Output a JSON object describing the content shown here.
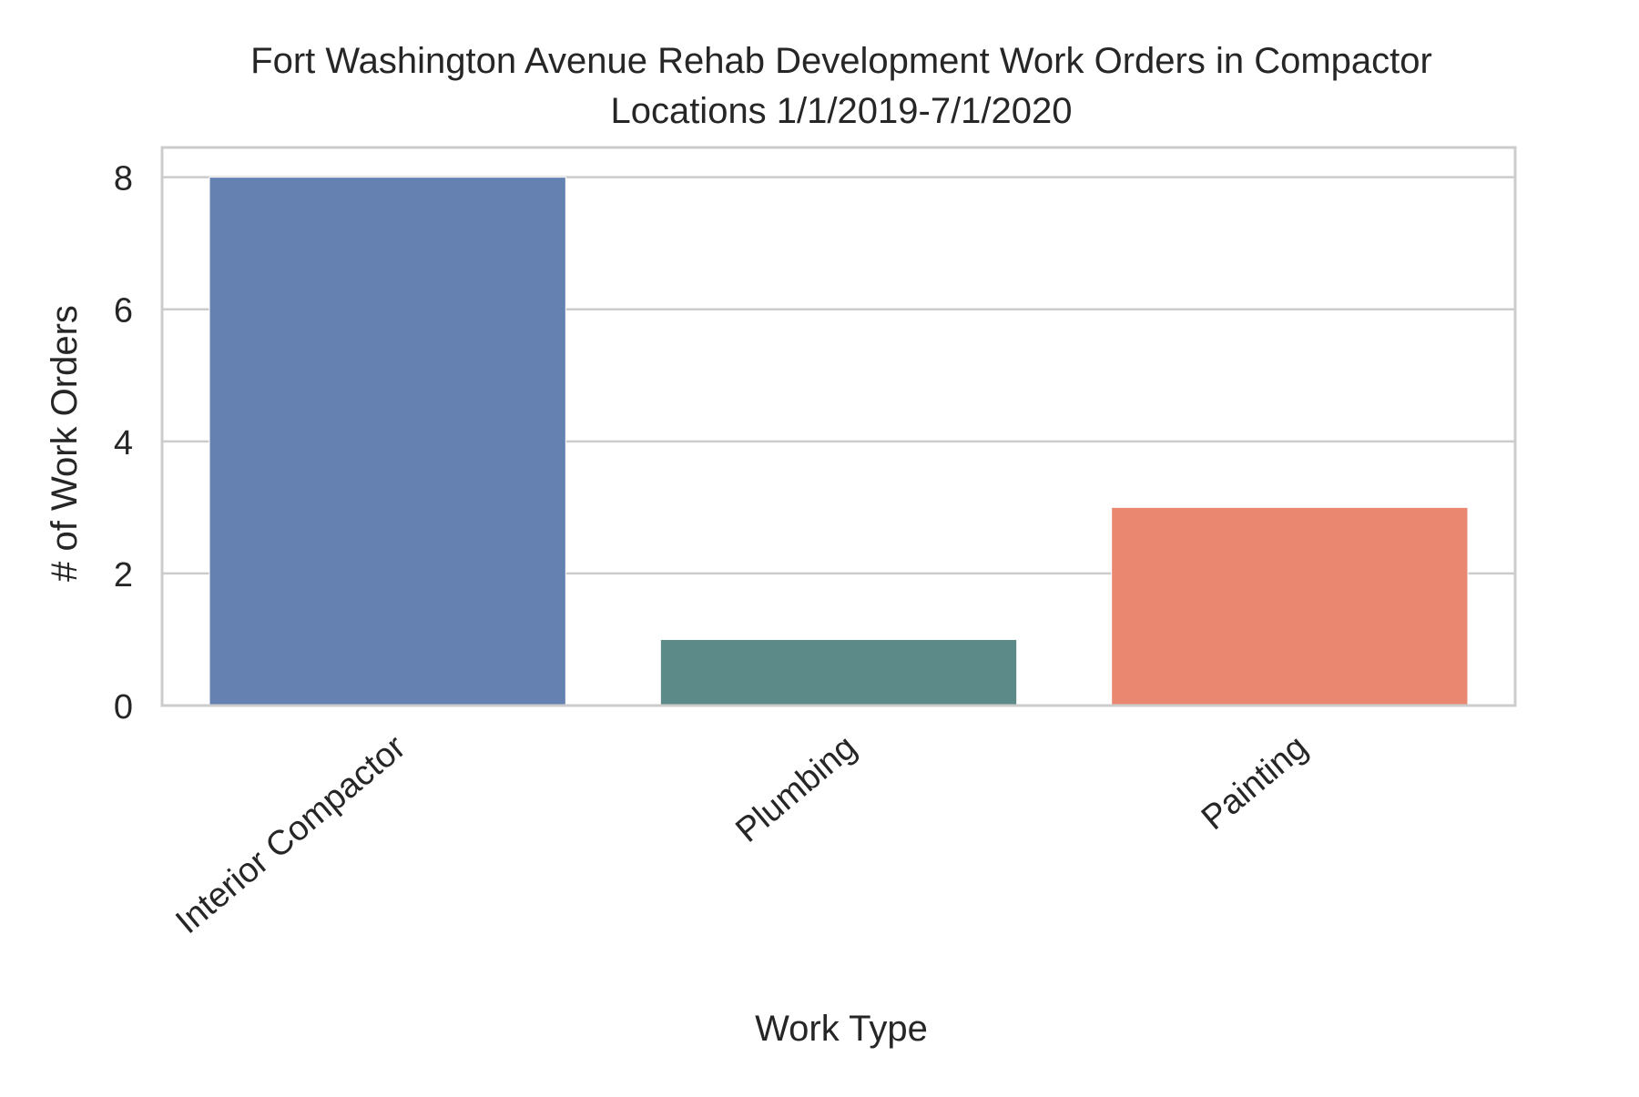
{
  "chart_data": {
    "type": "bar",
    "title_lines": [
      "Fort Washington Avenue Rehab Development Work Orders in Compactor",
      "Locations 1/1/2019-7/1/2020"
    ],
    "xlabel": "Work Type",
    "ylabel": "# of Work Orders",
    "categories": [
      "Interior Compactor",
      "Plumbing",
      "Painting"
    ],
    "values": [
      8,
      1,
      3
    ],
    "colors": [
      "#6581b1",
      "#5c8a89",
      "#e98771"
    ],
    "ylim": [
      0,
      8.45
    ],
    "yticks": [
      0,
      2,
      4,
      6,
      8
    ],
    "grid": "y",
    "axes_edge_color": "#cccccc",
    "grid_color": "#cccccc",
    "text_color": "#262626"
  }
}
